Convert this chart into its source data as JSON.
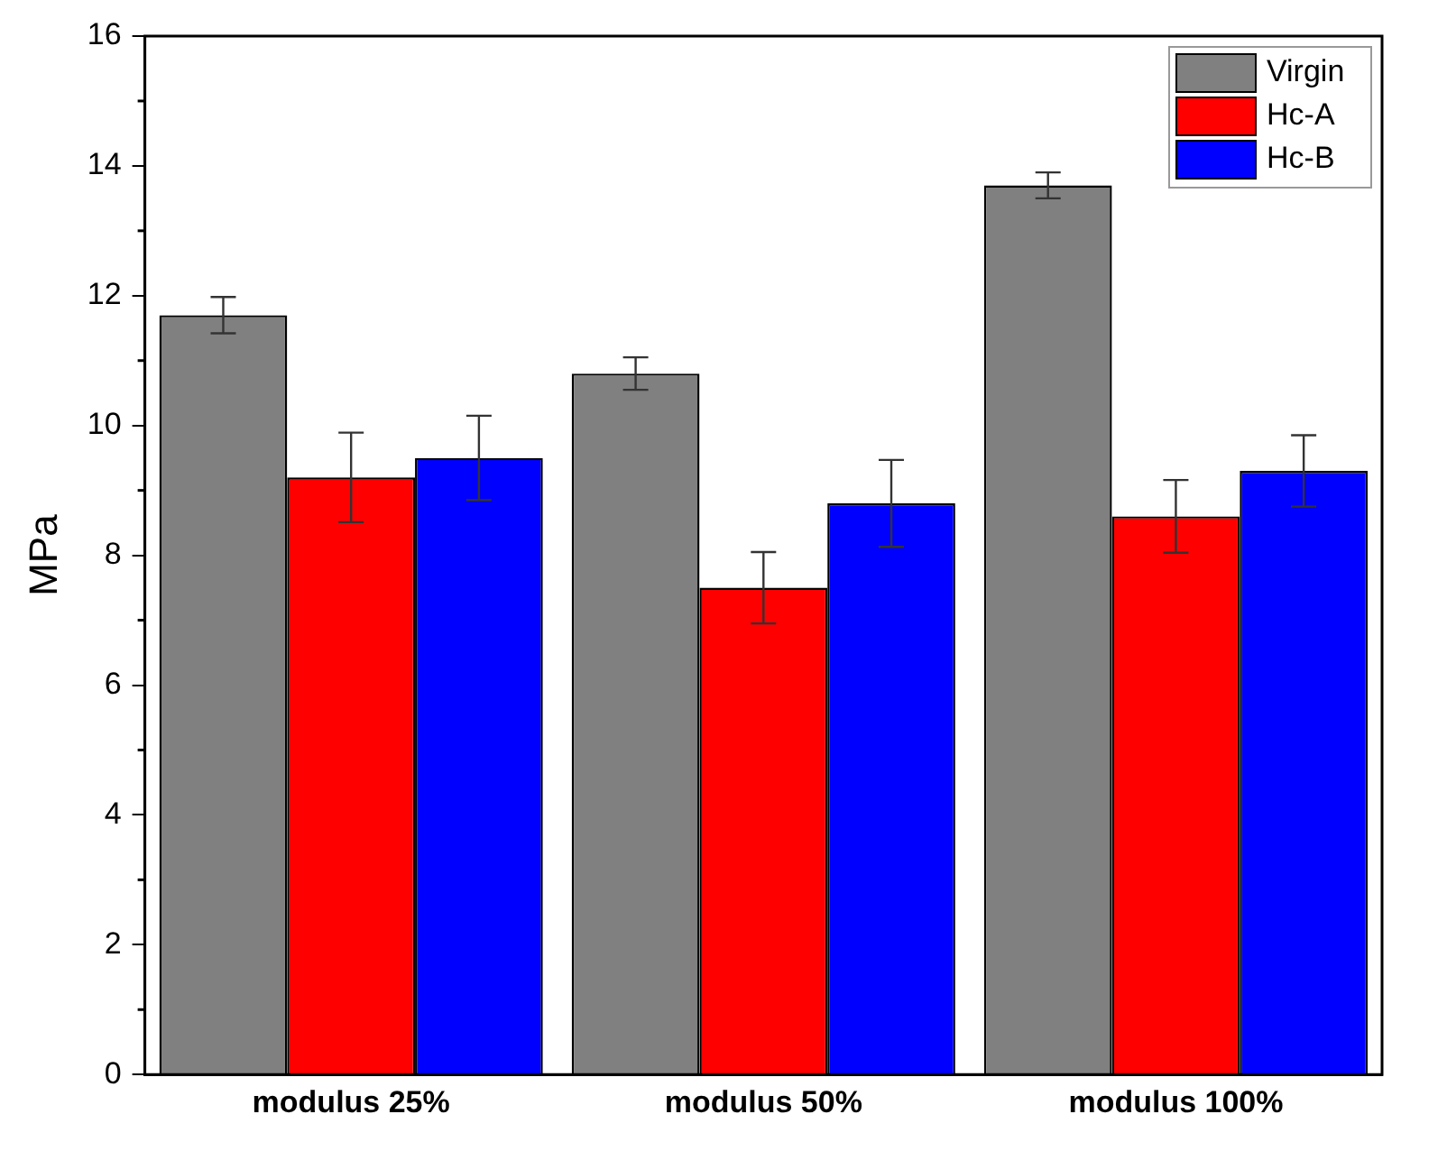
{
  "chart_data": {
    "type": "bar",
    "ylabel": "MPa",
    "categories": [
      "modulus 25%",
      "modulus 50%",
      "modulus 100%"
    ],
    "series": [
      {
        "name": "Virgin",
        "color": "#808080",
        "values": [
          11.7,
          10.8,
          13.7
        ],
        "errors": [
          0.28,
          0.25,
          0.2
        ]
      },
      {
        "name": "Hc-A",
        "color": "#ff0000",
        "values": [
          9.2,
          7.5,
          8.6
        ],
        "errors": [
          0.69,
          0.55,
          0.56
        ]
      },
      {
        "name": "Hc-B",
        "color": "#0000ff",
        "values": [
          9.5,
          8.8,
          9.3
        ],
        "errors": [
          0.65,
          0.67,
          0.55
        ]
      }
    ],
    "ylim": [
      0,
      16
    ],
    "yticks": [
      0,
      2,
      4,
      6,
      8,
      10,
      12,
      14,
      16
    ],
    "grid": false,
    "legend": "top right"
  }
}
